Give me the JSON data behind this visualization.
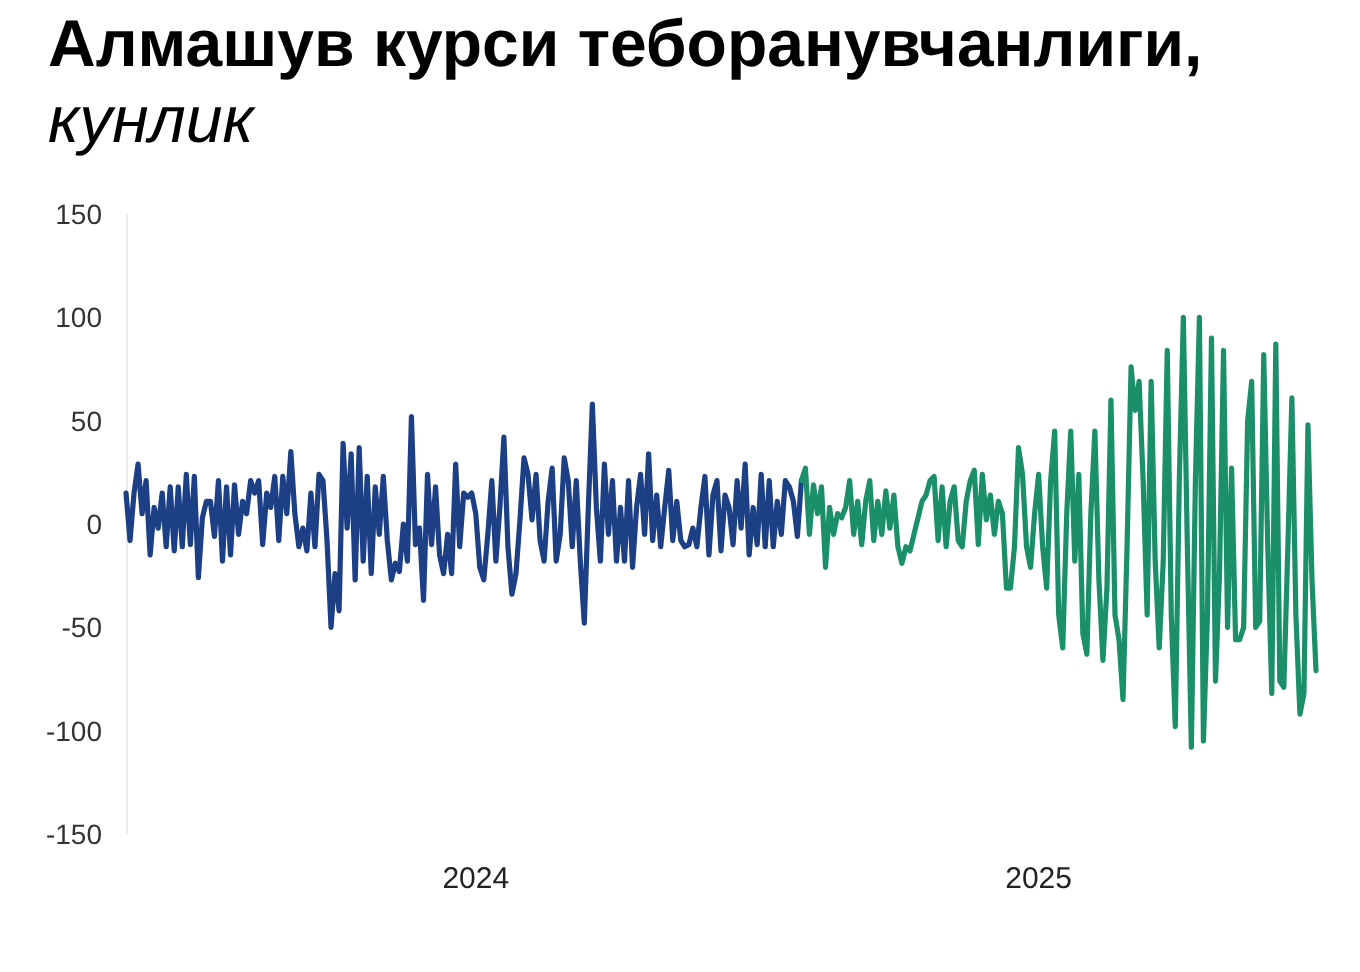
{
  "chart_data": {
    "type": "line",
    "title": "Алмашув курси теборанувчанлиги,",
    "subtitle": "кунлик",
    "categories": [
      null,
      null,
      null,
      null,
      null,
      null,
      null,
      null,
      null,
      null,
      null,
      null,
      null,
      null,
      null,
      null,
      null,
      null,
      null,
      null,
      null,
      null,
      null,
      null,
      null,
      null,
      null,
      null,
      null,
      null,
      null,
      null,
      null,
      null,
      null,
      null,
      null,
      null,
      null,
      null,
      null,
      null,
      null,
      null,
      null,
      null,
      null,
      null,
      null,
      null,
      null,
      null,
      null,
      null,
      null,
      null,
      null,
      null,
      null,
      null,
      null,
      null,
      null,
      null,
      null,
      null,
      null,
      null,
      null,
      null,
      null,
      null,
      null,
      null,
      null,
      null,
      null,
      null,
      null,
      null,
      null,
      null,
      null,
      null,
      null,
      null,
      null,
      "2024",
      null,
      null,
      null,
      null,
      null,
      null,
      null,
      null,
      null,
      null,
      null,
      null,
      null,
      null,
      null,
      null,
      null,
      null,
      null,
      null,
      null,
      null,
      null,
      null,
      null,
      null,
      null,
      null,
      null,
      null,
      null,
      null,
      null,
      null,
      null,
      null,
      null,
      null,
      null,
      null,
      null,
      null,
      null,
      null,
      null,
      null,
      null,
      null,
      null,
      null,
      null,
      null,
      null,
      null,
      null,
      null,
      null,
      null,
      null,
      null,
      null,
      null,
      null,
      null,
      null,
      null,
      null,
      null,
      null,
      null,
      null,
      null,
      null,
      null,
      null,
      null,
      null,
      null,
      null,
      null,
      null,
      null,
      null,
      null,
      null,
      null,
      null,
      null,
      null,
      null,
      null,
      null,
      null,
      null,
      null,
      null,
      null,
      null,
      null,
      null,
      null,
      null,
      null,
      null,
      null,
      null,
      null,
      null,
      null,
      null,
      null,
      null,
      null,
      null,
      null,
      null,
      null,
      null,
      null,
      null,
      null,
      null,
      null,
      null,
      null,
      null,
      null,
      null,
      null,
      null,
      null,
      null,
      null,
      null,
      null,
      null,
      null,
      null,
      null,
      "2025",
      null,
      null,
      null,
      null,
      null,
      null,
      null,
      null,
      null,
      null,
      null,
      null,
      null,
      null,
      null,
      null,
      null,
      null,
      null,
      null,
      null,
      null,
      null,
      null,
      null,
      null,
      null,
      null,
      null,
      null,
      null,
      null,
      null,
      null,
      null,
      null,
      null,
      null,
      null,
      null,
      null,
      null,
      null,
      null,
      null,
      null,
      null,
      null,
      null,
      null,
      null,
      null,
      null,
      null,
      null,
      null,
      null,
      null,
      null,
      null,
      null,
      null,
      null,
      null,
      null,
      null,
      null,
      null,
      null
    ],
    "series": [
      {
        "color": "#1c3f86",
        "values": [
          15,
          -8,
          15,
          29,
          5,
          21,
          -15,
          8,
          -2,
          15,
          -11,
          18,
          -13,
          18,
          -11,
          24,
          -10,
          23,
          -26,
          3,
          11,
          11,
          -6,
          21,
          -18,
          18,
          -15,
          19,
          -5,
          11,
          5,
          21,
          15,
          21,
          -10,
          15,
          8,
          23,
          -8,
          23,
          5,
          35,
          5,
          -11,
          -2,
          -13,
          15,
          -11,
          24,
          21,
          -8,
          -50,
          -24,
          -42,
          39,
          -2,
          34,
          -27,
          37,
          -18,
          23,
          -24,
          18,
          -5,
          23,
          -8,
          -27,
          -19,
          -23,
          0,
          -18,
          52,
          -10,
          -2,
          -37,
          24,
          -10,
          18,
          -15,
          -24,
          -5,
          -24,
          29,
          -11,
          15,
          13,
          15,
          5,
          -21,
          -27,
          -5,
          21,
          -18,
          8,
          42,
          -11,
          -34,
          -24,
          2,
          32,
          24,
          2,
          24,
          -8,
          -18,
          11,
          27,
          -18,
          -5,
          32,
          21,
          -11,
          21,
          -18,
          -48,
          8,
          58,
          8,
          -18,
          29,
          -5,
          21,
          -18,
          8,
          -18,
          21,
          -21,
          8,
          24,
          -5,
          34,
          -8,
          14,
          -11,
          8,
          26,
          -8,
          11,
          -8,
          -11,
          -10,
          -2,
          -11,
          8,
          23,
          -15,
          14,
          21,
          -13,
          14,
          8,
          -10,
          21,
          -2,
          29,
          -15,
          8,
          -10,
          24,
          -11,
          21,
          -11,
          11,
          -5,
          21,
          18,
          11,
          -6,
          21,
          null,
          null,
          null,
          null,
          null,
          null,
          null,
          null,
          null,
          null,
          null,
          null,
          null,
          null,
          null,
          null,
          null,
          null,
          null,
          null,
          null,
          null,
          null,
          null,
          null,
          null,
          null,
          null,
          null,
          null,
          null,
          null,
          null,
          null,
          null,
          null,
          null,
          null,
          null,
          null,
          null,
          null,
          null,
          null,
          null,
          null,
          null,
          null,
          null,
          null,
          null,
          null,
          null,
          null,
          null,
          null,
          null,
          null,
          null,
          null,
          null,
          null,
          null,
          null,
          null,
          null,
          null,
          null,
          null,
          null,
          null,
          null,
          null,
          null,
          null,
          null,
          null,
          null,
          null,
          null,
          null,
          null,
          null,
          null,
          null,
          null,
          null,
          null,
          null,
          null,
          null,
          null,
          null,
          null,
          null,
          null,
          null,
          null,
          null,
          null,
          null,
          null,
          null,
          null,
          null,
          null,
          null,
          null,
          null,
          null,
          null,
          null,
          null,
          null,
          null,
          null,
          null,
          null,
          null,
          null,
          null,
          null,
          null,
          null,
          null,
          null,
          null,
          null
        ]
      },
      {
        "color": "#1b8f6a",
        "values": [
          null,
          null,
          null,
          null,
          null,
          null,
          null,
          null,
          null,
          null,
          null,
          null,
          null,
          null,
          null,
          null,
          null,
          null,
          null,
          null,
          null,
          null,
          null,
          null,
          null,
          null,
          null,
          null,
          null,
          null,
          null,
          null,
          null,
          null,
          null,
          null,
          null,
          null,
          null,
          null,
          null,
          null,
          null,
          null,
          null,
          null,
          null,
          null,
          null,
          null,
          null,
          null,
          null,
          null,
          null,
          null,
          null,
          null,
          null,
          null,
          null,
          null,
          null,
          null,
          null,
          null,
          null,
          null,
          null,
          null,
          null,
          null,
          null,
          null,
          null,
          null,
          null,
          null,
          null,
          null,
          null,
          null,
          null,
          null,
          null,
          null,
          null,
          null,
          null,
          null,
          null,
          null,
          null,
          null,
          null,
          null,
          null,
          null,
          null,
          null,
          null,
          null,
          null,
          null,
          null,
          null,
          null,
          null,
          null,
          null,
          null,
          null,
          null,
          null,
          null,
          null,
          null,
          null,
          null,
          null,
          null,
          null,
          null,
          null,
          null,
          null,
          null,
          null,
          null,
          null,
          null,
          null,
          null,
          null,
          null,
          null,
          null,
          null,
          null,
          null,
          null,
          null,
          null,
          null,
          null,
          null,
          null,
          null,
          null,
          null,
          null,
          null,
          null,
          null,
          null,
          null,
          null,
          null,
          null,
          null,
          null,
          null,
          null,
          null,
          null,
          null,
          null,
          null,
          21,
          27,
          -5,
          19,
          5,
          18,
          -21,
          8,
          -5,
          5,
          3,
          8,
          21,
          -5,
          11,
          -10,
          11,
          21,
          -8,
          11,
          -5,
          16,
          -2,
          14,
          -11,
          -19,
          -11,
          -13,
          -5,
          3,
          11,
          14,
          21,
          23,
          -8,
          18,
          -11,
          11,
          18,
          -8,
          -11,
          11,
          21,
          26,
          -10,
          24,
          2,
          14,
          -5,
          11,
          5,
          -31,
          -31,
          -11,
          37,
          24,
          -11,
          -21,
          5,
          24,
          -11,
          -31,
          21,
          45,
          -44,
          -60,
          5,
          45,
          -18,
          24,
          -53,
          -63,
          5,
          45,
          -27,
          -66,
          -31,
          60,
          -44,
          -56,
          -85,
          -11,
          76,
          55,
          69,
          21,
          -44,
          69,
          -18,
          -60,
          -18,
          84,
          -44,
          -98,
          21,
          100,
          -11,
          -108,
          21,
          100,
          -105,
          -44,
          90,
          -76,
          -24,
          84,
          -50,
          27,
          -56,
          -56,
          -50,
          50,
          69,
          -50,
          -47,
          82,
          -11,
          -82,
          87,
          -76,
          -79,
          -11,
          61,
          -44,
          -92,
          -82,
          48,
          -27,
          -71
        ]
      }
    ],
    "ylim": [
      -150,
      150
    ],
    "yticks": [
      -150,
      -100,
      -50,
      0,
      50,
      100,
      150
    ],
    "marker": "none",
    "line_style": "solid"
  }
}
